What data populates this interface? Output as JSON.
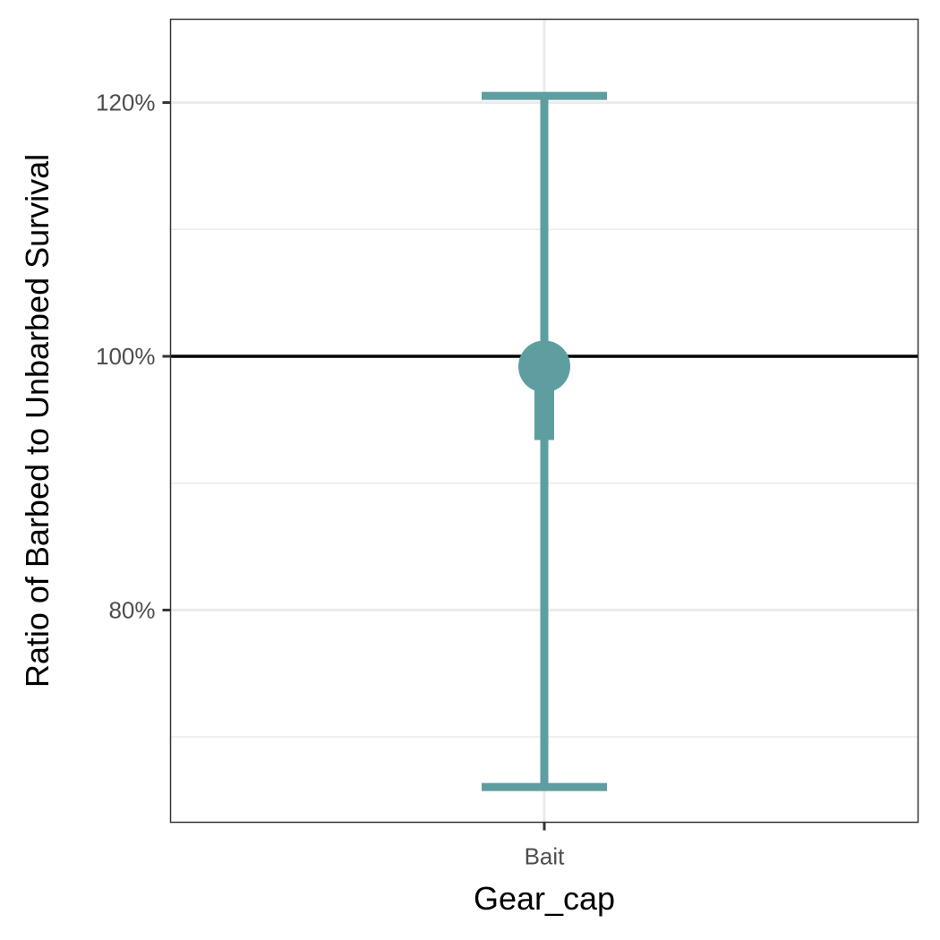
{
  "chart_data": {
    "type": "errorbar",
    "title": "",
    "xlabel": "Gear_cap",
    "ylabel": "Ratio of Barbed to Unbarbed Survival",
    "categories": [
      "Bait"
    ],
    "ylim": [
      0.6327,
      1.2657
    ],
    "y_ticks": [
      {
        "value": 0.8,
        "label": "80%"
      },
      {
        "value": 1.0,
        "label": "100%"
      },
      {
        "value": 1.2,
        "label": "120%"
      }
    ],
    "y_minor_ticks": [
      0.7,
      0.9,
      1.1
    ],
    "reference_line": 1.0,
    "points": [
      {
        "category": "Bait",
        "estimate": 0.992,
        "ci_outer": [
          0.6605,
          1.2053
        ],
        "ci_inner": [
          0.934,
          0.982
        ]
      }
    ],
    "grid": true,
    "colors": {
      "series": "#5f9ea0",
      "reference": "#000000",
      "grid": "#ebebeb",
      "panel_border": "#333333",
      "tick_text": "#4d4d4d"
    }
  }
}
